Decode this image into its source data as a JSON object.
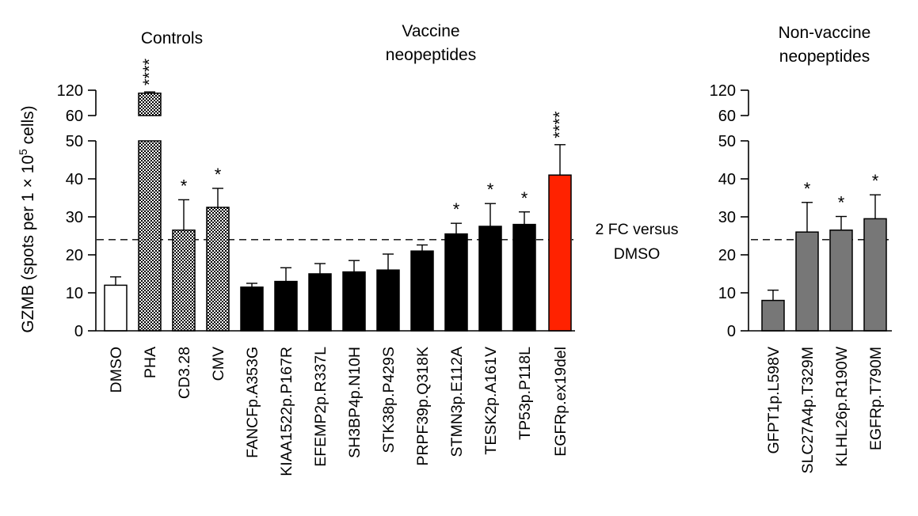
{
  "chart_data": {
    "type": "bar",
    "ylabel": "GZMB (spots per 1 × 10⁵ cells)",
    "ylabel_main": "GZMB (spots per 1 × 10",
    "ylabel_sup": "5",
    "ylabel_end": " cells)",
    "y_ticks_lower": [
      "0",
      "10",
      "20",
      "30",
      "40",
      "50"
    ],
    "y_ticks_upper": [
      "60",
      "120"
    ],
    "y_axis_break": [
      50,
      60
    ],
    "ylim": [
      0,
      120
    ],
    "reference_line": {
      "value": 24,
      "label_line1": "2 FC versus",
      "label_line2": "DMSO",
      "style": "dashed"
    },
    "groups": [
      {
        "label_lines": [
          "Controls"
        ],
        "bars": [
          {
            "category": "DMSO",
            "value": 12,
            "error": 2.2,
            "fill": "white",
            "significance": ""
          },
          {
            "category": "PHA",
            "value": 113,
            "error": 3,
            "fill": "checkered",
            "significance": "****"
          },
          {
            "category": "CD3.28",
            "value": 26.5,
            "error": 8,
            "fill": "checkered",
            "significance": "*"
          },
          {
            "category": "CMV",
            "value": 32.5,
            "error": 5,
            "fill": "checkered",
            "significance": "*"
          }
        ]
      },
      {
        "label_lines": [
          "Vaccine",
          "neopeptides"
        ],
        "bars": [
          {
            "category": "FANCFp.A353G",
            "value": 11.5,
            "error": 1,
            "fill": "black",
            "significance": ""
          },
          {
            "category": "KIAA1522p.P167R",
            "value": 13,
            "error": 3.6,
            "fill": "black",
            "significance": ""
          },
          {
            "category": "EFEMP2p.R337L",
            "value": 15,
            "error": 2.7,
            "fill": "black",
            "significance": ""
          },
          {
            "category": "SH3BP4p.N10H",
            "value": 15.5,
            "error": 3,
            "fill": "black",
            "significance": ""
          },
          {
            "category": "STK38p.P429S",
            "value": 16,
            "error": 4.2,
            "fill": "black",
            "significance": ""
          },
          {
            "category": "PRPF39p.Q318K",
            "value": 21,
            "error": 1.6,
            "fill": "black",
            "significance": ""
          },
          {
            "category": "STMN3p.E112A",
            "value": 25.5,
            "error": 2.8,
            "fill": "black",
            "significance": "*"
          },
          {
            "category": "TESK2p.A161V",
            "value": 27.5,
            "error": 6,
            "fill": "black",
            "significance": "*"
          },
          {
            "category": "TP53p.P118L",
            "value": 28,
            "error": 3.3,
            "fill": "black",
            "significance": "*"
          },
          {
            "category": "EGFRp.ex19del",
            "value": 41,
            "error": 8,
            "fill": "red",
            "significance": "****"
          }
        ]
      },
      {
        "label_lines": [
          "Non-vaccine",
          "neopeptides"
        ],
        "bars": [
          {
            "category": "GFPT1p.L598V",
            "value": 8,
            "error": 2.7,
            "fill": "gray",
            "significance": ""
          },
          {
            "category": "SLC27A4p.T329M",
            "value": 26,
            "error": 7.8,
            "fill": "gray",
            "significance": "*"
          },
          {
            "category": "KLHL26p.R190W",
            "value": 26.5,
            "error": 3.6,
            "fill": "gray",
            "significance": "*"
          },
          {
            "category": "EGFRp.T790M",
            "value": 29.5,
            "error": 6.3,
            "fill": "gray",
            "significance": "*"
          }
        ]
      }
    ],
    "colors": {
      "black": "#000000",
      "red": "#ff2200",
      "gray": "#777777",
      "white": "#ffffff"
    }
  }
}
